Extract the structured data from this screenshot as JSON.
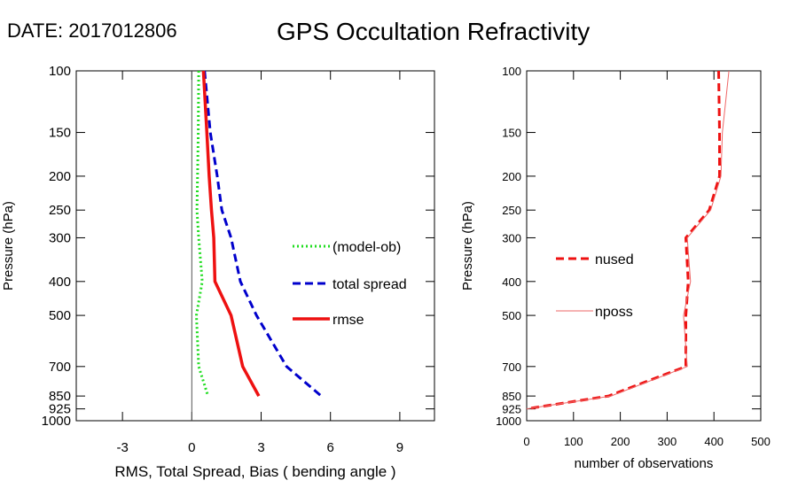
{
  "header": {
    "date_label": "DATE: 2017012806",
    "title": "GPS Occultation Refractivity"
  },
  "chart_data": [
    {
      "type": "line",
      "xlabel": "RMS, Total Spread, Bias ( bending angle )",
      "ylabel": "Pressure (hPa)",
      "xlim": [
        -5,
        10.5
      ],
      "ylim": [
        1000,
        100
      ],
      "y_scale": "log",
      "grid": false,
      "legend_position": "right",
      "x_ticks": [
        -3,
        0,
        3,
        6,
        9
      ],
      "y_ticks": [
        100,
        150,
        200,
        250,
        300,
        400,
        500,
        700,
        850,
        925,
        1000
      ],
      "zero_line": 0,
      "series": [
        {
          "name": "(model-ob)",
          "color": "#22dd22",
          "style": "dotted",
          "points": [
            [
              0.3,
              100
            ],
            [
              0.28,
              150
            ],
            [
              0.25,
              200
            ],
            [
              0.22,
              250
            ],
            [
              0.3,
              300
            ],
            [
              0.45,
              400
            ],
            [
              0.2,
              500
            ],
            [
              0.3,
              700
            ],
            [
              0.7,
              850
            ]
          ]
        },
        {
          "name": "total spread",
          "color": "#0000cc",
          "style": "dashed",
          "points": [
            [
              0.55,
              100
            ],
            [
              0.8,
              150
            ],
            [
              1.1,
              200
            ],
            [
              1.3,
              250
            ],
            [
              1.7,
              300
            ],
            [
              2.1,
              400
            ],
            [
              2.8,
              500
            ],
            [
              4.1,
              700
            ],
            [
              5.6,
              850
            ]
          ]
        },
        {
          "name": "rmse",
          "color": "#ee1111",
          "style": "solid",
          "points": [
            [
              0.5,
              100
            ],
            [
              0.65,
              150
            ],
            [
              0.75,
              200
            ],
            [
              0.85,
              250
            ],
            [
              0.95,
              300
            ],
            [
              1.0,
              400
            ],
            [
              1.7,
              500
            ],
            [
              2.2,
              700
            ],
            [
              2.9,
              850
            ]
          ]
        }
      ]
    },
    {
      "type": "line",
      "xlabel": "number of observations",
      "ylabel": "Pressure (hPa)",
      "xlim": [
        0,
        500
      ],
      "ylim": [
        1000,
        100
      ],
      "y_scale": "log",
      "grid": false,
      "legend_position": "left",
      "x_ticks": [
        0,
        100,
        200,
        300,
        400,
        500
      ],
      "y_ticks": [
        100,
        150,
        200,
        250,
        300,
        400,
        500,
        700,
        850,
        925,
        1000
      ],
      "series": [
        {
          "name": "nused",
          "color": "#ee1111",
          "style": "dashed",
          "points": [
            [
              410,
              100
            ],
            [
              412,
              150
            ],
            [
              412,
              200
            ],
            [
              390,
              250
            ],
            [
              340,
              300
            ],
            [
              345,
              400
            ],
            [
              340,
              500
            ],
            [
              340,
              700
            ],
            [
              175,
              850
            ],
            [
              0,
              925
            ]
          ]
        },
        {
          "name": "nposs",
          "color": "#ee6666",
          "style": "thin",
          "points": [
            [
              432,
              100
            ],
            [
              418,
              150
            ],
            [
              415,
              200
            ],
            [
              393,
              250
            ],
            [
              343,
              300
            ],
            [
              350,
              400
            ],
            [
              335,
              500
            ],
            [
              343,
              700
            ],
            [
              180,
              850
            ],
            [
              0,
              925
            ]
          ]
        }
      ]
    }
  ]
}
